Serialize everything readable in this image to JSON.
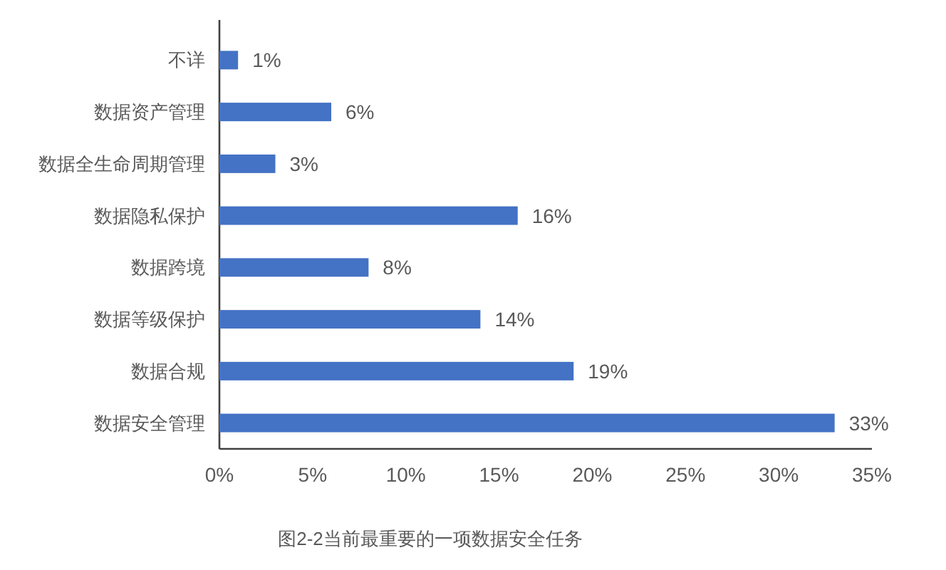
{
  "chart_data": {
    "type": "bar",
    "orientation": "horizontal",
    "categories": [
      "不详",
      "数据资产管理",
      "数据全生命周期管理",
      "数据隐私保护",
      "数据跨境",
      "数据等级保护",
      "数据合规",
      "数据安全管理"
    ],
    "values": [
      1,
      6,
      3,
      16,
      8,
      14,
      19,
      33
    ],
    "color": "#4472c4",
    "value_labels": [
      "1%",
      "6%",
      "3%",
      "16%",
      "8%",
      "14%",
      "19%",
      "33%"
    ],
    "xlim": [
      0,
      35
    ],
    "xticks": [
      {
        "value": 0,
        "label": "0%"
      },
      {
        "value": 5,
        "label": "5%"
      },
      {
        "value": 10,
        "label": "10%"
      },
      {
        "value": 15,
        "label": "15%"
      },
      {
        "value": 20,
        "label": "20%"
      },
      {
        "value": 25,
        "label": "25%"
      },
      {
        "value": 30,
        "label": "30%"
      },
      {
        "value": 35,
        "label": "35%"
      }
    ],
    "annotations": [
      "图2-2当前最重要的一项数据安全任务"
    ]
  }
}
